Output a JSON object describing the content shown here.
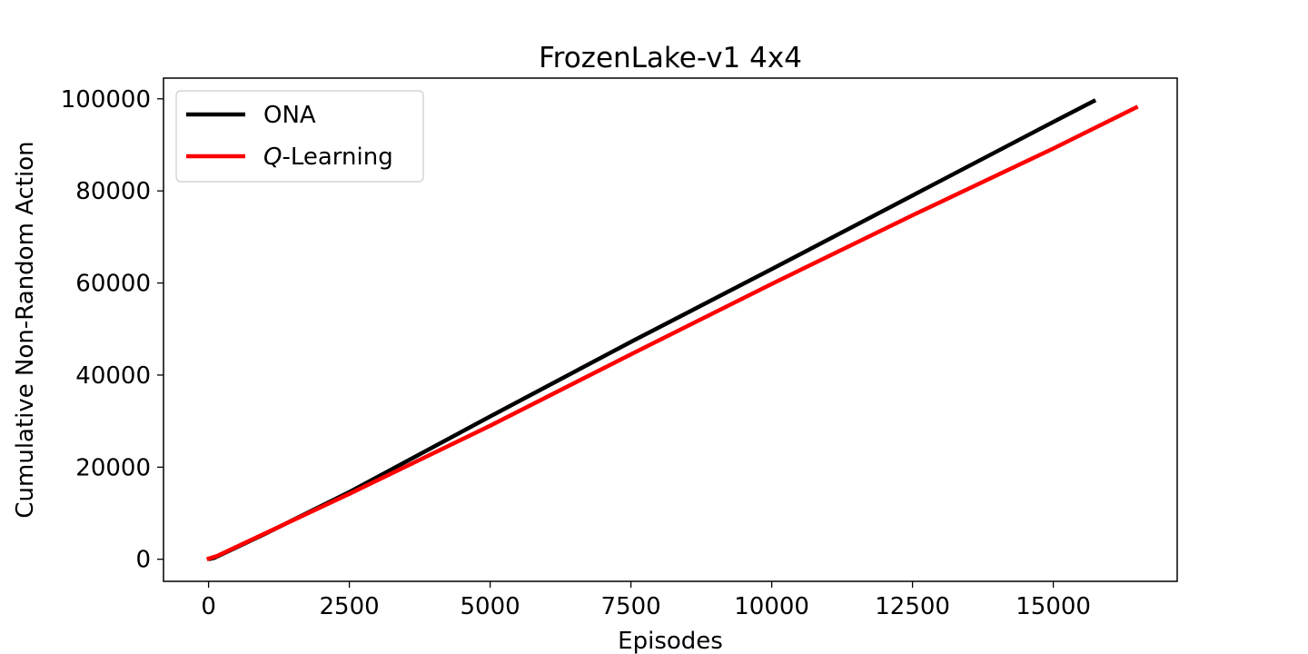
{
  "chart_data": {
    "type": "line",
    "title": "FrozenLake-v1 4x4",
    "xlabel": "Episodes",
    "ylabel": "Cumulative Non-Random Action",
    "xlim": [
      -800,
      17200
    ],
    "ylim": [
      -4800,
      104500
    ],
    "xticks": [
      0,
      2500,
      5000,
      7500,
      10000,
      12500,
      15000
    ],
    "yticks": [
      0,
      20000,
      40000,
      60000,
      80000,
      100000
    ],
    "grid": false,
    "legend_position": "top-left",
    "series": [
      {
        "name": "ONA",
        "color": "#000000",
        "points": [
          [
            0,
            0
          ],
          [
            100,
            300
          ],
          [
            1000,
            5500
          ],
          [
            2500,
            14600
          ],
          [
            5000,
            31000
          ],
          [
            7500,
            47200
          ],
          [
            10000,
            63000
          ],
          [
            12500,
            79000
          ],
          [
            15000,
            95000
          ],
          [
            15750,
            99700
          ]
        ]
      },
      {
        "name": "Q-Learning",
        "name_italic_prefix": "Q",
        "name_suffix": "-Learning",
        "color": "#ff0000",
        "points": [
          [
            -30,
            0
          ],
          [
            150,
            700
          ],
          [
            1000,
            5600
          ],
          [
            2500,
            14200
          ],
          [
            5000,
            29000
          ],
          [
            7500,
            44500
          ],
          [
            10000,
            59800
          ],
          [
            12500,
            74700
          ],
          [
            15000,
            89200
          ],
          [
            16500,
            98300
          ]
        ]
      }
    ]
  }
}
